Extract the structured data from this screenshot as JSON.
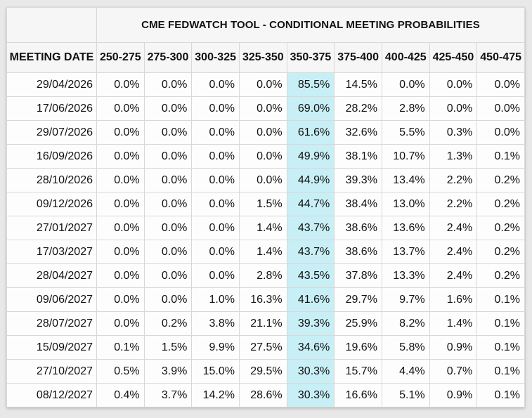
{
  "header": {
    "title": "CME FEDWATCH TOOL - CONDITIONAL MEETING PROBABILITIES",
    "row_label": "MEETING DATE"
  },
  "colors": {
    "page_background": "#e8e8e8",
    "header_background": "#f6f6f6",
    "cell_background": "#fdfdfd",
    "highlight_cyan": "#c8eff5",
    "grid_border": "#d8d8d8",
    "text": "#111111"
  },
  "chart_data": {
    "type": "table",
    "title": "CME FEDWATCH TOOL - CONDITIONAL MEETING PROBABILITIES",
    "row_header": "MEETING DATE",
    "columns": [
      "250-275",
      "275-300",
      "300-325",
      "325-350",
      "350-375",
      "375-400",
      "400-425",
      "425-450",
      "450-475"
    ],
    "highlight_column": "350-375",
    "highlight_column_index": 4,
    "rows": [
      {
        "date": "29/04/2026",
        "values": [
          "0.0%",
          "0.0%",
          "0.0%",
          "0.0%",
          "85.5%",
          "14.5%",
          "0.0%",
          "0.0%",
          "0.0%"
        ]
      },
      {
        "date": "17/06/2026",
        "values": [
          "0.0%",
          "0.0%",
          "0.0%",
          "0.0%",
          "69.0%",
          "28.2%",
          "2.8%",
          "0.0%",
          "0.0%"
        ]
      },
      {
        "date": "29/07/2026",
        "values": [
          "0.0%",
          "0.0%",
          "0.0%",
          "0.0%",
          "61.6%",
          "32.6%",
          "5.5%",
          "0.3%",
          "0.0%"
        ]
      },
      {
        "date": "16/09/2026",
        "values": [
          "0.0%",
          "0.0%",
          "0.0%",
          "0.0%",
          "49.9%",
          "38.1%",
          "10.7%",
          "1.3%",
          "0.1%"
        ]
      },
      {
        "date": "28/10/2026",
        "values": [
          "0.0%",
          "0.0%",
          "0.0%",
          "0.0%",
          "44.9%",
          "39.3%",
          "13.4%",
          "2.2%",
          "0.2%"
        ]
      },
      {
        "date": "09/12/2026",
        "values": [
          "0.0%",
          "0.0%",
          "0.0%",
          "1.5%",
          "44.7%",
          "38.4%",
          "13.0%",
          "2.2%",
          "0.2%"
        ]
      },
      {
        "date": "27/01/2027",
        "values": [
          "0.0%",
          "0.0%",
          "0.0%",
          "1.4%",
          "43.7%",
          "38.6%",
          "13.6%",
          "2.4%",
          "0.2%"
        ]
      },
      {
        "date": "17/03/2027",
        "values": [
          "0.0%",
          "0.0%",
          "0.0%",
          "1.4%",
          "43.7%",
          "38.6%",
          "13.7%",
          "2.4%",
          "0.2%"
        ]
      },
      {
        "date": "28/04/2027",
        "values": [
          "0.0%",
          "0.0%",
          "0.0%",
          "2.8%",
          "43.5%",
          "37.8%",
          "13.3%",
          "2.4%",
          "0.2%"
        ]
      },
      {
        "date": "09/06/2027",
        "values": [
          "0.0%",
          "0.0%",
          "1.0%",
          "16.3%",
          "41.6%",
          "29.7%",
          "9.7%",
          "1.6%",
          "0.1%"
        ]
      },
      {
        "date": "28/07/2027",
        "values": [
          "0.0%",
          "0.2%",
          "3.8%",
          "21.1%",
          "39.3%",
          "25.9%",
          "8.2%",
          "1.4%",
          "0.1%"
        ]
      },
      {
        "date": "15/09/2027",
        "values": [
          "0.1%",
          "1.5%",
          "9.9%",
          "27.5%",
          "34.6%",
          "19.6%",
          "5.8%",
          "0.9%",
          "0.1%"
        ]
      },
      {
        "date": "27/10/2027",
        "values": [
          "0.5%",
          "3.9%",
          "15.0%",
          "29.5%",
          "30.3%",
          "15.7%",
          "4.4%",
          "0.7%",
          "0.1%"
        ]
      },
      {
        "date": "08/12/2027",
        "values": [
          "0.4%",
          "3.7%",
          "14.2%",
          "28.6%",
          "30.3%",
          "16.6%",
          "5.1%",
          "0.9%",
          "0.1%"
        ]
      }
    ]
  }
}
